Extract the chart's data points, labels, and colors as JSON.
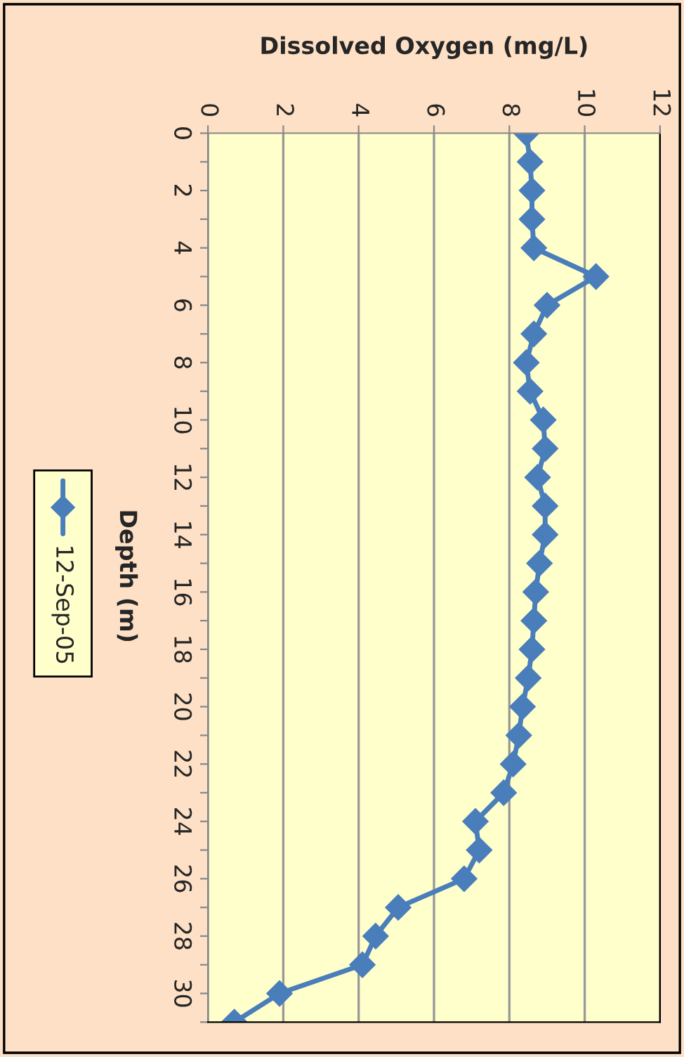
{
  "chart_data": {
    "type": "line",
    "orientation": "horizontal",
    "ylabel": "Depth (m)",
    "xlabel": "Dissolved Oxygen (mg/L)",
    "x": [
      0,
      1,
      2,
      3,
      4,
      5,
      6,
      7,
      8,
      9,
      10,
      11,
      12,
      13,
      14,
      15,
      16,
      17,
      18,
      19,
      20,
      21,
      22,
      23,
      24,
      25,
      26,
      27,
      28,
      29,
      30,
      31
    ],
    "series": [
      {
        "name": "12-Sep-05",
        "color": "#4a7ebb",
        "values": [
          8.45,
          8.55,
          8.6,
          8.6,
          8.65,
          10.3,
          9.0,
          8.65,
          8.45,
          8.55,
          8.9,
          8.95,
          8.75,
          8.95,
          8.95,
          8.8,
          8.7,
          8.65,
          8.6,
          8.5,
          8.35,
          8.25,
          8.1,
          7.85,
          7.1,
          7.2,
          6.8,
          5.05,
          4.45,
          4.1,
          1.9,
          0.7
        ]
      }
    ],
    "ylim": [
      31,
      0
    ],
    "yticks": [
      0,
      {
        "value": 1,
        "label": null
      },
      2,
      {
        "value": 3,
        "label": null
      },
      4,
      {
        "value": 5,
        "label": null
      },
      6,
      {
        "value": 7,
        "label": null
      },
      8,
      {
        "value": 9,
        "label": null
      },
      10,
      {
        "value": 11,
        "label": null
      },
      12,
      {
        "value": 13,
        "label": null
      },
      14,
      {
        "value": 15,
        "label": null
      },
      16,
      {
        "value": 17,
        "label": null
      },
      18,
      {
        "value": 19,
        "label": null
      },
      20,
      {
        "value": 21,
        "label": null
      },
      22,
      {
        "value": 23,
        "label": null
      },
      24,
      {
        "value": 25,
        "label": null
      },
      26,
      {
        "value": 27,
        "label": null
      },
      28,
      {
        "value": 29,
        "label": null
      },
      30,
      {
        "value": 31,
        "label": null
      }
    ],
    "xlim": [
      0,
      12
    ],
    "xticks": [
      0,
      2,
      4,
      6,
      8,
      10,
      12
    ],
    "grid": "x",
    "legend": "left",
    "marker": "diamond",
    "line_style": "solid"
  }
}
